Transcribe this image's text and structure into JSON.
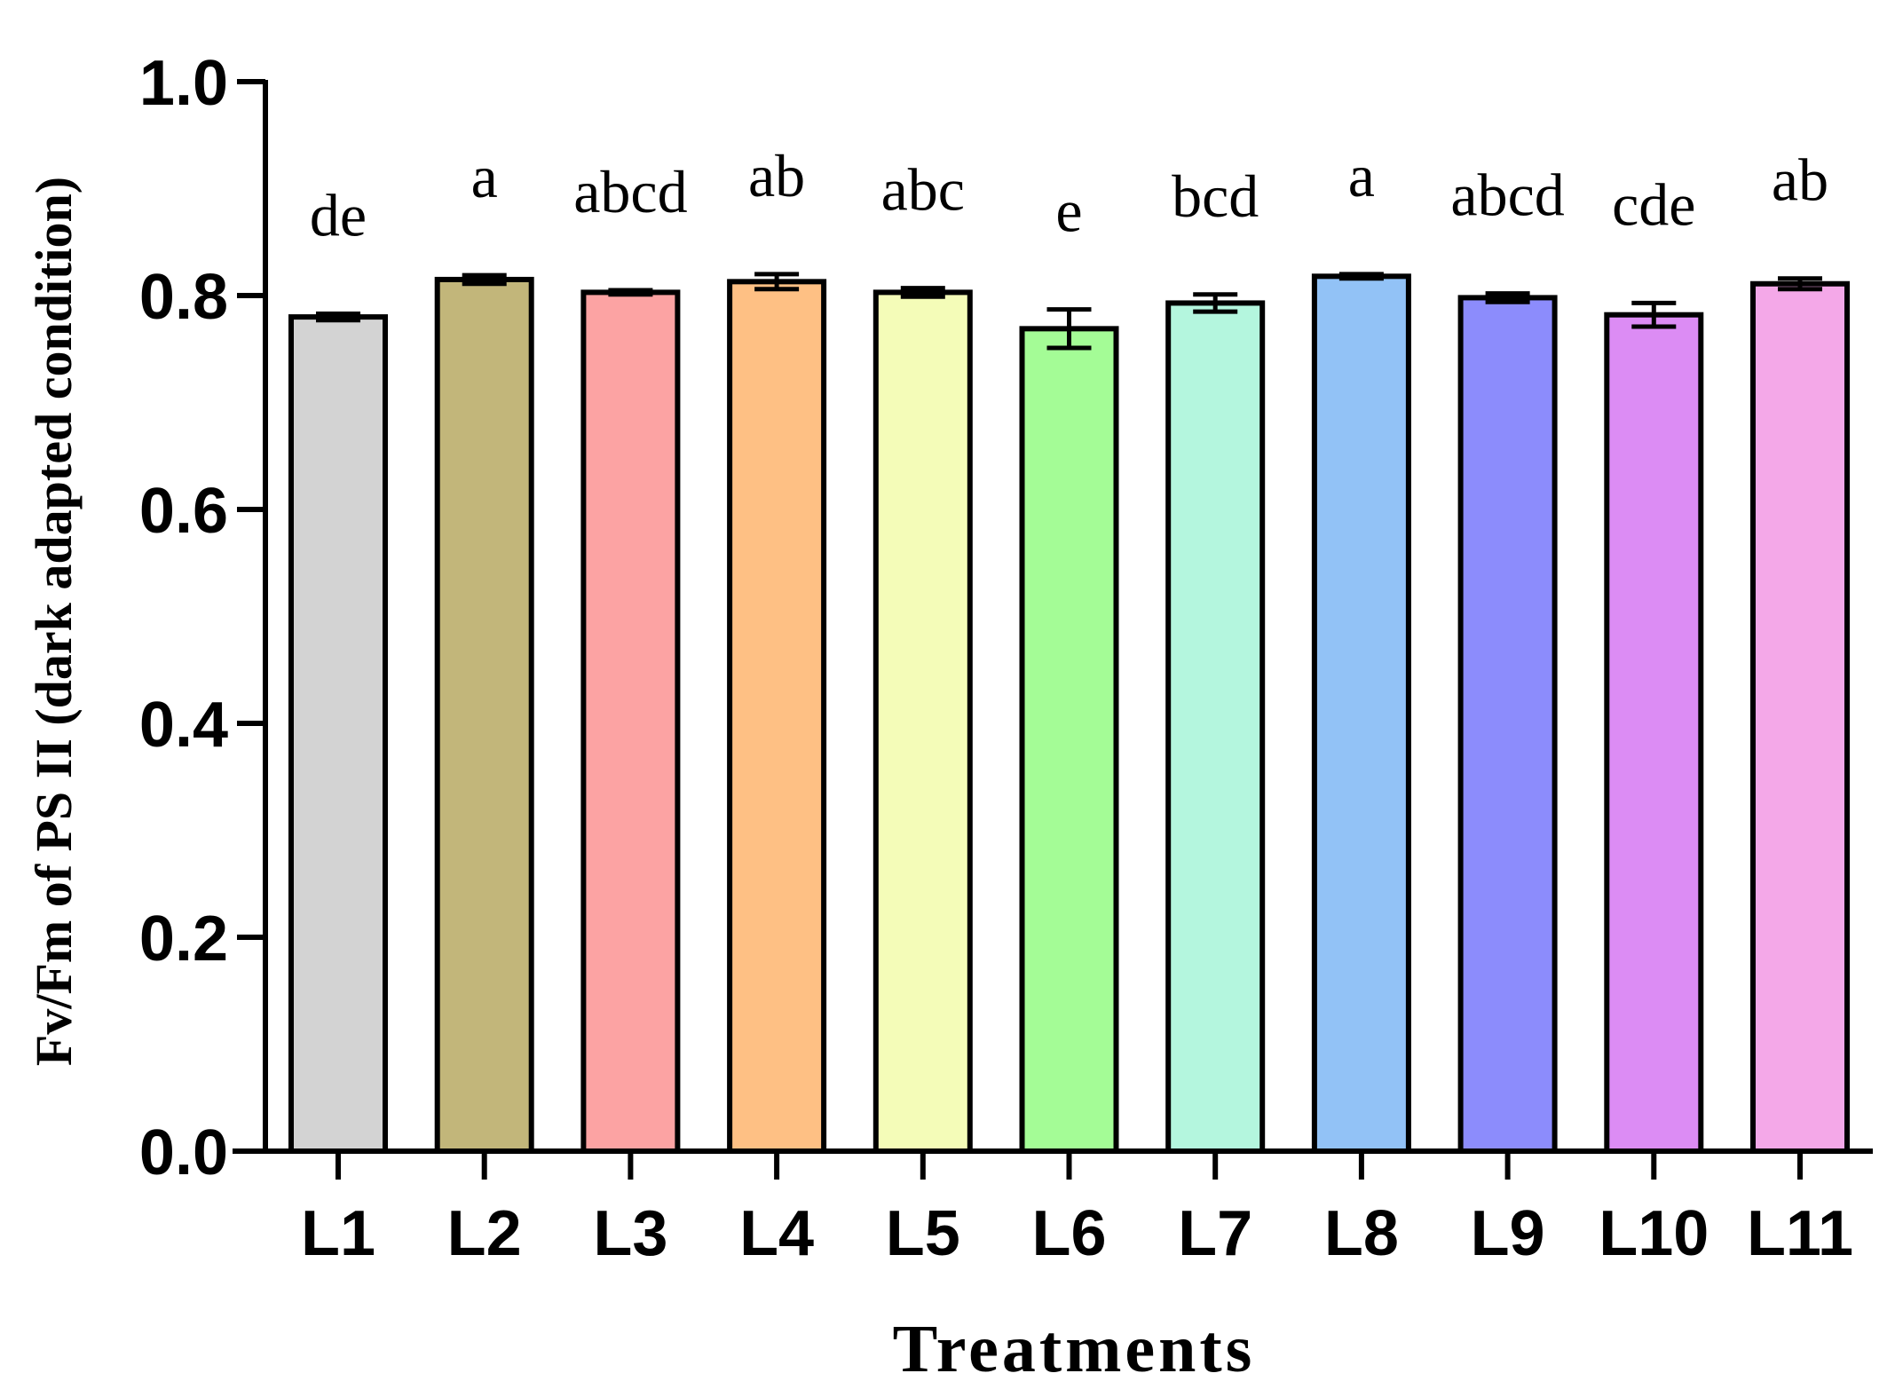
{
  "chart_data": {
    "type": "bar",
    "title": "",
    "xlabel": "Treatments",
    "ylabel": "Fv/Fm of PS II (dark adapted condition)",
    "ylim": [
      0,
      1.0
    ],
    "yticks": [
      0.0,
      0.2,
      0.4,
      0.6,
      0.8,
      1.0
    ],
    "ytick_labels": [
      "0.0",
      "0.2",
      "0.4",
      "0.6",
      "0.8",
      "1.0"
    ],
    "categories": [
      "L1",
      "L2",
      "L3",
      "L4",
      "L5",
      "L6",
      "L7",
      "L8",
      "L9",
      "L10",
      "L11"
    ],
    "values": [
      0.78,
      0.815,
      0.803,
      0.813,
      0.803,
      0.769,
      0.793,
      0.818,
      0.798,
      0.782,
      0.811
    ],
    "errors": [
      0.003,
      0.004,
      0.002,
      0.007,
      0.004,
      0.018,
      0.008,
      0.002,
      0.004,
      0.011,
      0.005
    ],
    "significance": [
      "de",
      "a",
      "abcd",
      "ab",
      "abc",
      "e",
      "bcd",
      "a",
      "abcd",
      "cde",
      "ab"
    ],
    "colors": [
      "#d3d3d3",
      "#c2b67a",
      "#fca3a3",
      "#fec084",
      "#f4fcb8",
      "#a4fc96",
      "#b4f6de",
      "#92c2f6",
      "#8c8cfc",
      "#dc8cf4",
      "#f4a8e8"
    ]
  }
}
